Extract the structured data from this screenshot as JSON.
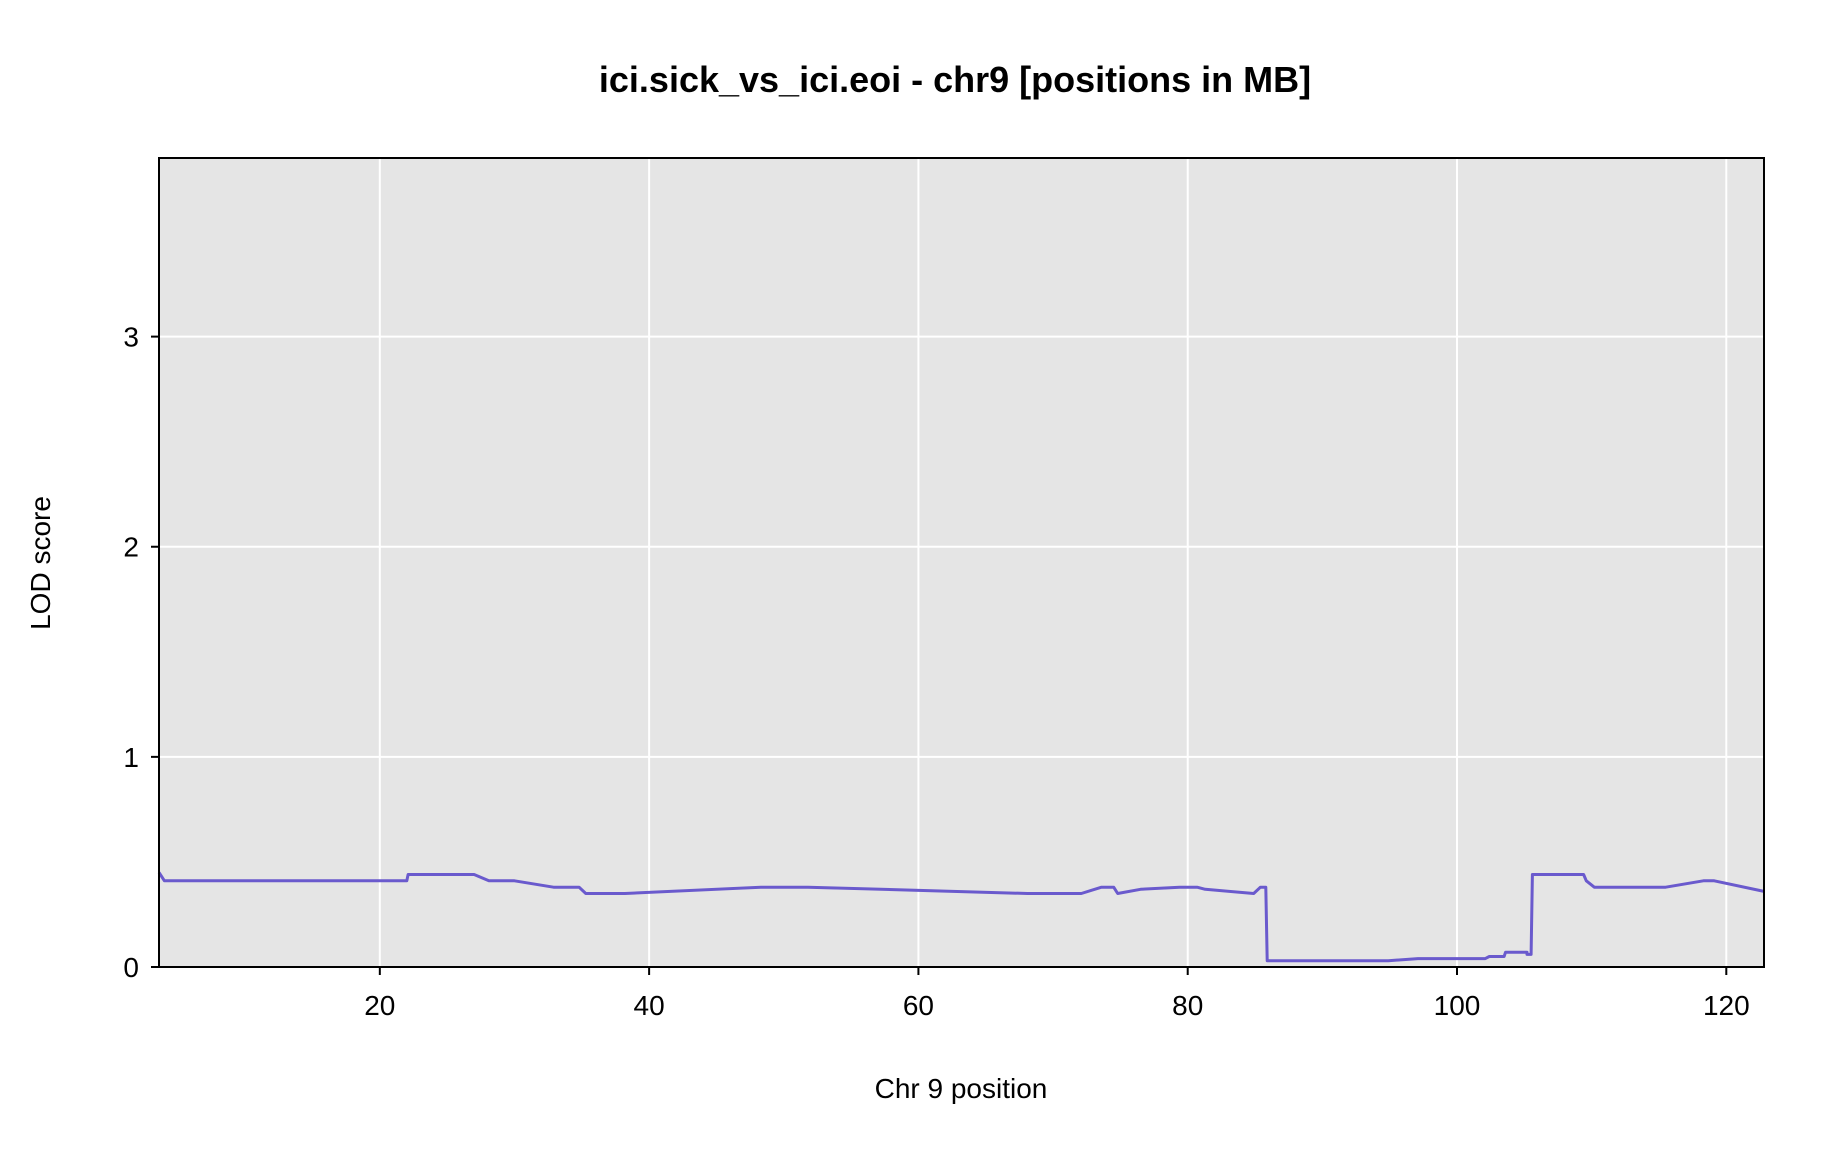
{
  "chart_data": {
    "type": "line",
    "title": "ici.sick_vs_ici.eoi - chr9 [positions in MB]",
    "xlabel": "Chr 9 position",
    "ylabel": "LOD score",
    "xlim": [
      3.6,
      122.8
    ],
    "ylim": [
      0,
      3.85
    ],
    "xticks": [
      20,
      40,
      60,
      80,
      100,
      120
    ],
    "yticks": [
      0,
      1,
      2,
      3
    ],
    "grid": true,
    "colors": {
      "line": "#6a5acd",
      "panel": "#e5e5e5",
      "grid": "#ffffff",
      "baseline": "#00008b"
    },
    "series": [
      {
        "x": [
          3.6,
          4.0,
          20.0,
          22.0,
          22.1,
          27.0,
          28.1,
          30.0,
          32.9,
          34.8,
          35.3,
          38.2,
          48.3,
          51.8,
          68.1,
          72.1,
          73.6,
          74.5,
          74.8,
          76.5,
          79.4,
          80.7,
          81.3,
          84.9,
          85.4,
          85.8,
          85.9,
          86.0,
          94.9,
          97.1,
          102.1,
          102.4,
          103.5,
          103.6,
          105.2,
          105.2,
          105.5,
          105.6,
          109.4,
          109.6,
          110.2,
          115.5,
          118.3,
          119.1,
          122.8
        ],
        "y": [
          0.45,
          0.41,
          0.41,
          0.41,
          0.44,
          0.44,
          0.41,
          0.41,
          0.38,
          0.38,
          0.35,
          0.35,
          0.38,
          0.38,
          0.35,
          0.35,
          0.38,
          0.38,
          0.35,
          0.37,
          0.38,
          0.38,
          0.37,
          0.35,
          0.38,
          0.38,
          0.03,
          0.03,
          0.03,
          0.04,
          0.04,
          0.05,
          0.05,
          0.07,
          0.07,
          0.06,
          0.06,
          0.44,
          0.44,
          0.41,
          0.38,
          0.38,
          0.41,
          0.41,
          0.36
        ]
      }
    ]
  }
}
